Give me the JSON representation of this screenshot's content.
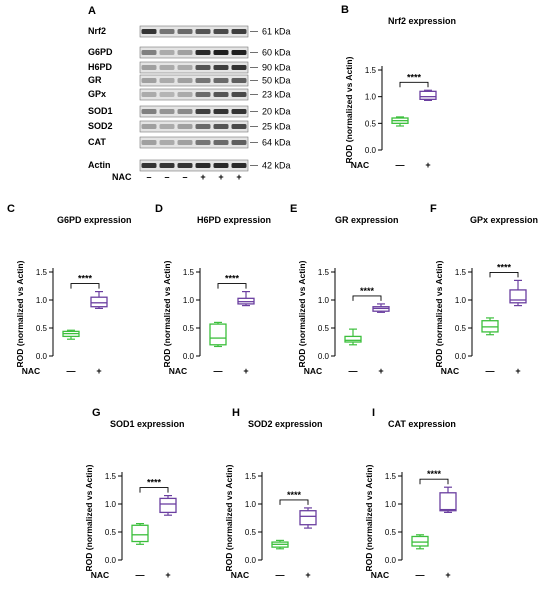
{
  "western_blot": {
    "panel_letter": "A",
    "proteins": [
      "Nrf2",
      "G6PD",
      "H6PD",
      "GR",
      "GPx",
      "SOD1",
      "SOD2",
      "CAT",
      "Actin"
    ],
    "sizes": [
      "61 kDa",
      "60 kDa",
      "90 kDa",
      "50 kDa",
      "23 kDa",
      "20 kDa",
      "25 kDa",
      "64 kDa",
      "42 kDa"
    ],
    "nac_label": "NAC",
    "lane_signs": [
      "–",
      "–",
      "–",
      "+",
      "+",
      "+"
    ]
  },
  "chart_data": [
    {
      "letter": "B",
      "type": "box",
      "title": "Nrf2 expression",
      "ylabel": "ROD (normalized vs Actin)",
      "xlabel": "NAC",
      "categories": [
        "—",
        "+"
      ],
      "ylim": [
        0,
        1.5
      ],
      "yticks": [
        "0.0",
        "0.5",
        "1.0",
        "1.5"
      ],
      "significance": "****",
      "series": [
        {
          "min": 0.45,
          "q1": 0.5,
          "median": 0.55,
          "q3": 0.6,
          "max": 0.62,
          "color": "#3cbf3c"
        },
        {
          "min": 0.93,
          "q1": 0.95,
          "median": 1.0,
          "q3": 1.1,
          "max": 1.12,
          "color": "#6b3fa0"
        }
      ]
    },
    {
      "letter": "C",
      "type": "box",
      "title": "G6PD expression",
      "ylabel": "ROD (normalized vs Actin)",
      "xlabel": "NAC",
      "categories": [
        "—",
        "+"
      ],
      "ylim": [
        0,
        1.5
      ],
      "yticks": [
        "0.0",
        "0.5",
        "1.0",
        "1.5"
      ],
      "significance": "****",
      "series": [
        {
          "min": 0.3,
          "q1": 0.35,
          "median": 0.4,
          "q3": 0.44,
          "max": 0.46,
          "color": "#3cbf3c"
        },
        {
          "min": 0.85,
          "q1": 0.88,
          "median": 0.95,
          "q3": 1.05,
          "max": 1.15,
          "color": "#6b3fa0"
        }
      ]
    },
    {
      "letter": "D",
      "type": "box",
      "title": "H6PD expression",
      "ylabel": "ROD (normalized vs Actin)",
      "xlabel": "NAC",
      "categories": [
        "—",
        "+"
      ],
      "ylim": [
        0,
        1.5
      ],
      "yticks": [
        "0.0",
        "0.5",
        "1.0",
        "1.5"
      ],
      "significance": "****",
      "series": [
        {
          "min": 0.17,
          "q1": 0.2,
          "median": 0.32,
          "q3": 0.57,
          "max": 0.6,
          "color": "#3cbf3c"
        },
        {
          "min": 0.9,
          "q1": 0.93,
          "median": 0.97,
          "q3": 1.03,
          "max": 1.15,
          "color": "#6b3fa0"
        }
      ]
    },
    {
      "letter": "E",
      "type": "box",
      "title": "GR expression",
      "ylabel": "ROD (normalized vs Actin)",
      "xlabel": "NAC",
      "categories": [
        "—",
        "+"
      ],
      "ylim": [
        0,
        1.5
      ],
      "yticks": [
        "0.0",
        "0.5",
        "1.0",
        "1.5"
      ],
      "significance": "****",
      "series": [
        {
          "min": 0.2,
          "q1": 0.25,
          "median": 0.28,
          "q3": 0.35,
          "max": 0.48,
          "color": "#3cbf3c"
        },
        {
          "min": 0.78,
          "q1": 0.8,
          "median": 0.85,
          "q3": 0.88,
          "max": 0.93,
          "color": "#6b3fa0"
        }
      ]
    },
    {
      "letter": "F",
      "type": "box",
      "title": "GPx expression",
      "ylabel": "ROD (normalized vs Actin)",
      "xlabel": "NAC",
      "categories": [
        "—",
        "+"
      ],
      "ylim": [
        0,
        1.5
      ],
      "yticks": [
        "0.0",
        "0.5",
        "1.0",
        "1.5"
      ],
      "significance": "****",
      "series": [
        {
          "min": 0.38,
          "q1": 0.43,
          "median": 0.52,
          "q3": 0.63,
          "max": 0.68,
          "color": "#3cbf3c"
        },
        {
          "min": 0.9,
          "q1": 0.95,
          "median": 1.0,
          "q3": 1.18,
          "max": 1.35,
          "color": "#6b3fa0"
        }
      ]
    },
    {
      "letter": "G",
      "type": "box",
      "title": "SOD1 expression",
      "ylabel": "ROD (normalized vs Actin)",
      "xlabel": "NAC",
      "categories": [
        "—",
        "+"
      ],
      "ylim": [
        0,
        1.5
      ],
      "yticks": [
        "0.0",
        "0.5",
        "1.0",
        "1.5"
      ],
      "significance": "****",
      "series": [
        {
          "min": 0.28,
          "q1": 0.33,
          "median": 0.45,
          "q3": 0.62,
          "max": 0.65,
          "color": "#3cbf3c"
        },
        {
          "min": 0.8,
          "q1": 0.85,
          "median": 1.0,
          "q3": 1.1,
          "max": 1.15,
          "color": "#6b3fa0"
        }
      ]
    },
    {
      "letter": "H",
      "type": "box",
      "title": "SOD2 expression",
      "ylabel": "ROD (normalized vs Actin)",
      "xlabel": "NAC",
      "categories": [
        "—",
        "+"
      ],
      "ylim": [
        0,
        1.5
      ],
      "yticks": [
        "0.0",
        "0.5",
        "1.0",
        "1.5"
      ],
      "significance": "****",
      "series": [
        {
          "min": 0.2,
          "q1": 0.23,
          "median": 0.28,
          "q3": 0.32,
          "max": 0.35,
          "color": "#3cbf3c"
        },
        {
          "min": 0.57,
          "q1": 0.63,
          "median": 0.78,
          "q3": 0.88,
          "max": 0.93,
          "color": "#6b3fa0"
        }
      ]
    },
    {
      "letter": "I",
      "type": "box",
      "title": "CAT expression",
      "ylabel": "ROD (normalized vs Actin)",
      "xlabel": "NAC",
      "categories": [
        "—",
        "+"
      ],
      "ylim": [
        0,
        1.5
      ],
      "yticks": [
        "0.0",
        "0.5",
        "1.0",
        "1.5"
      ],
      "significance": "****",
      "series": [
        {
          "min": 0.2,
          "q1": 0.25,
          "median": 0.32,
          "q3": 0.42,
          "max": 0.45,
          "color": "#3cbf3c"
        },
        {
          "min": 0.85,
          "q1": 0.88,
          "median": 0.9,
          "q3": 1.2,
          "max": 1.3,
          "color": "#6b3fa0"
        }
      ]
    }
  ]
}
